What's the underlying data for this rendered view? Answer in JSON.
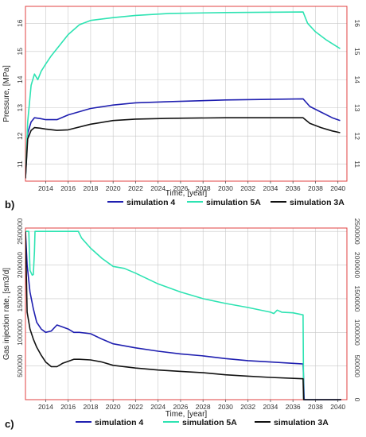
{
  "chart_data": [
    {
      "type": "line",
      "panel_label": "",
      "xlabel": "Time, [year]",
      "ylabel": "Pressure, [MPa]",
      "xlim": [
        2012.2,
        2040.8
      ],
      "ylim": [
        10.4,
        16.6
      ],
      "x_ticks": [
        "2014",
        "2016",
        "2018",
        "2020",
        "2022",
        "2024",
        "2026",
        "2028",
        "2030",
        "2032",
        "2034",
        "2036",
        "2038",
        "2040"
      ],
      "y_ticks": [
        "11",
        "12",
        "13",
        "14",
        "15",
        "16"
      ],
      "right_y_ticks": [
        "11",
        "12",
        "13",
        "14",
        "15",
        "16"
      ],
      "grid": true,
      "series": [
        {
          "name": "simulation 4",
          "color": "#1f1fb0",
          "x": [
            2012.2,
            2012.4,
            2012.7,
            2013.0,
            2013.5,
            2014.0,
            2015.0,
            2016.0,
            2018.0,
            2020.0,
            2022.0,
            2025.0,
            2030.0,
            2036.9,
            2037.5,
            2038.5,
            2039.5,
            2040.2
          ],
          "y": [
            10.5,
            12.1,
            12.5,
            12.65,
            12.62,
            12.58,
            12.58,
            12.75,
            12.98,
            13.1,
            13.18,
            13.22,
            13.28,
            13.32,
            13.05,
            12.85,
            12.65,
            12.55
          ]
        },
        {
          "name": "simulation 5A",
          "color": "#2ee3b2",
          "x": [
            2012.2,
            2012.4,
            2012.7,
            2013.0,
            2013.3,
            2013.6,
            2014.0,
            2014.5,
            2015.0,
            2016.0,
            2017.0,
            2018.0,
            2020.0,
            2022.0,
            2025.0,
            2030.0,
            2036.9,
            2037.3,
            2038.0,
            2039.0,
            2040.2
          ],
          "y": [
            10.5,
            12.5,
            13.8,
            14.2,
            14.0,
            14.3,
            14.55,
            14.85,
            15.1,
            15.6,
            15.95,
            16.1,
            16.2,
            16.28,
            16.35,
            16.38,
            16.4,
            16.0,
            15.7,
            15.4,
            15.1
          ]
        },
        {
          "name": "simulation 3A",
          "color": "#111111",
          "x": [
            2012.2,
            2012.4,
            2012.7,
            2013.0,
            2013.5,
            2014.0,
            2015.0,
            2016.0,
            2018.0,
            2020.0,
            2022.0,
            2025.0,
            2030.0,
            2036.9,
            2037.5,
            2038.5,
            2039.5,
            2040.2
          ],
          "y": [
            10.5,
            11.9,
            12.2,
            12.3,
            12.28,
            12.25,
            12.2,
            12.22,
            12.42,
            12.55,
            12.6,
            12.63,
            12.65,
            12.65,
            12.45,
            12.3,
            12.18,
            12.12
          ]
        }
      ]
    },
    {
      "type": "line",
      "panel_label": "b)",
      "xlabel": "Time, [year]",
      "ylabel": "Gas injection rate, [sm3/d]",
      "xlim": [
        2012.2,
        2040.8
      ],
      "ylim": [
        0,
        2550000
      ],
      "x_ticks": [
        "2014",
        "2016",
        "2018",
        "2020",
        "2022",
        "2024",
        "2026",
        "2028",
        "2030",
        "2032",
        "2034",
        "2036",
        "2038",
        "2040"
      ],
      "y_ticks": [
        "500000",
        "1000000",
        "1500000",
        "2000000",
        "2500000"
      ],
      "right_y_ticks": [
        "0",
        "500000",
        "1000000",
        "1500000",
        "2000000",
        "2500000"
      ],
      "grid": true,
      "series": [
        {
          "name": "simulation 4",
          "color": "#1f1fb0",
          "x": [
            2012.2,
            2012.35,
            2012.6,
            2012.9,
            2013.2,
            2013.6,
            2014.0,
            2014.5,
            2015.0,
            2015.5,
            2016.0,
            2016.5,
            2017.0,
            2018.0,
            2019.0,
            2020.0,
            2022.0,
            2024.0,
            2026.0,
            2028.0,
            2030.0,
            2032.0,
            2034.0,
            2036.9,
            2036.95,
            2037.0,
            2037.1,
            2040.3
          ],
          "y": [
            2500000,
            2000000,
            1600000,
            1350000,
            1150000,
            1050000,
            1000000,
            1020000,
            1110000,
            1080000,
            1050000,
            1000000,
            1000000,
            980000,
            900000,
            830000,
            770000,
            720000,
            680000,
            650000,
            610000,
            580000,
            560000,
            530000,
            300000,
            0,
            0,
            0
          ]
        },
        {
          "name": "simulation 5A",
          "color": "#2ee3b2",
          "x": [
            2012.2,
            2012.5,
            2012.6,
            2012.8,
            2012.9,
            2013.0,
            2013.05,
            2013.2,
            2016.9,
            2017.2,
            2018.0,
            2019.0,
            2020.0,
            2021.0,
            2022.0,
            2024.0,
            2026.0,
            2028.0,
            2030.0,
            2032.0,
            2034.0,
            2034.3,
            2034.6,
            2035.0,
            2036.0,
            2036.9,
            2036.95
          ],
          "y": [
            2500000,
            2500000,
            1920000,
            1850000,
            1860000,
            2200000,
            2500000,
            2500000,
            2500000,
            2400000,
            2250000,
            2100000,
            1980000,
            1950000,
            1880000,
            1720000,
            1600000,
            1500000,
            1430000,
            1370000,
            1300000,
            1280000,
            1330000,
            1300000,
            1290000,
            1260000,
            0
          ]
        },
        {
          "name": "simulation 3A",
          "color": "#111111",
          "x": [
            2012.2,
            2012.35,
            2012.6,
            2012.9,
            2013.2,
            2013.6,
            2014.0,
            2014.5,
            2015.0,
            2015.5,
            2016.0,
            2016.5,
            2017.0,
            2018.0,
            2019.0,
            2020.0,
            2022.0,
            2024.0,
            2026.0,
            2028.0,
            2030.0,
            2032.0,
            2034.0,
            2036.9,
            2036.95,
            2037.1,
            2040.3
          ],
          "y": [
            2500000,
            1300000,
            1050000,
            900000,
            780000,
            660000,
            560000,
            490000,
            490000,
            540000,
            570000,
            600000,
            600000,
            590000,
            560000,
            510000,
            470000,
            440000,
            420000,
            400000,
            370000,
            350000,
            330000,
            310000,
            0,
            0,
            0
          ]
        }
      ]
    }
  ],
  "legends": [
    {
      "entries": [
        "simulation 4",
        "simulation 5A",
        "simulation 3A"
      ]
    },
    {
      "panel_label": "c)",
      "entries": [
        "simulation 4",
        "simulation 5A",
        "simulation 3A"
      ]
    }
  ],
  "colors": {
    "sim4": "#1f1fb0",
    "sim5A": "#2ee3b2",
    "sim3A": "#111111",
    "frame": "#e04040",
    "grid": "#c8c8c8"
  }
}
